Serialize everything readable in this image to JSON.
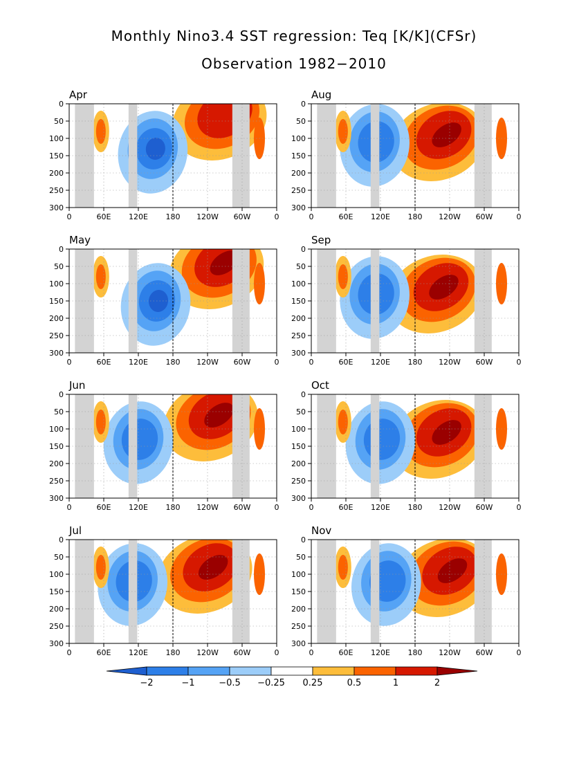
{
  "figure": {
    "title": "Monthly Nino3.4 SST regression: Teq [K/K](CFSr)",
    "subtitle": "Observation 1982−2010"
  },
  "chart_data": {
    "type": "heatmap",
    "x_tick_labels": [
      "0",
      "60E",
      "120E",
      "180",
      "120W",
      "60W",
      "0"
    ],
    "y_tick_labels": [
      "0",
      "50",
      "100",
      "150",
      "200",
      "250",
      "300"
    ],
    "xlim": [
      0,
      360
    ],
    "ylim": [
      300,
      0
    ],
    "grid": true,
    "dateline_x": 180,
    "land_masks": [
      [
        10,
        43
      ],
      [
        103,
        118
      ],
      [
        283,
        313
      ]
    ],
    "colorbar": {
      "levels": [
        "−2",
        "−1",
        "−0.5",
        "−0.25",
        "0.25",
        "0.5",
        "1",
        "2"
      ],
      "colors": [
        "#1e5fd0",
        "#2d7fe8",
        "#55a3f5",
        "#9ccdf9",
        "#ffffff",
        "#fdbd3b",
        "#fb6300",
        "#d61800",
        "#9a0000"
      ]
    },
    "panels": [
      {
        "month": "Apr",
        "peak_x": 270,
        "peak_y": 30,
        "peak_level": 2,
        "cold_x": 145,
        "cold_y": 130,
        "cold_level": -2
      },
      {
        "month": "Aug",
        "peak_x": 230,
        "peak_y": 90,
        "peak_level": 3,
        "cold_x": 110,
        "cold_y": 110,
        "cold_level": -1
      },
      {
        "month": "May",
        "peak_x": 265,
        "peak_y": 40,
        "peak_level": 3,
        "cold_x": 150,
        "cold_y": 150,
        "cold_level": -2
      },
      {
        "month": "Sep",
        "peak_x": 225,
        "peak_y": 110,
        "peak_level": 3,
        "cold_x": 110,
        "cold_y": 130,
        "cold_level": -1
      },
      {
        "month": "Jun",
        "peak_x": 255,
        "peak_y": 60,
        "peak_level": 3,
        "cold_x": 120,
        "cold_y": 130,
        "cold_level": -1
      },
      {
        "month": "Oct",
        "peak_x": 230,
        "peak_y": 110,
        "peak_level": 3,
        "cold_x": 120,
        "cold_y": 130,
        "cold_level": -1
      },
      {
        "month": "Jul",
        "peak_x": 245,
        "peak_y": 80,
        "peak_level": 3,
        "cold_x": 110,
        "cold_y": 120,
        "cold_level": -1
      },
      {
        "month": "Nov",
        "peak_x": 240,
        "peak_y": 90,
        "peak_level": 3,
        "cold_x": 130,
        "cold_y": 120,
        "cold_level": -1
      }
    ]
  }
}
